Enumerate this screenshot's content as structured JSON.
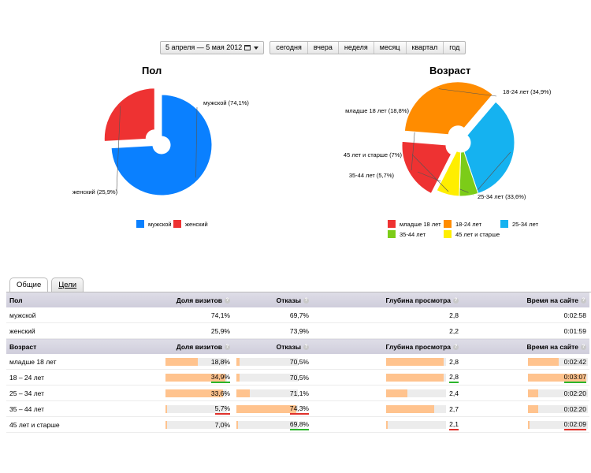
{
  "toolbar": {
    "date_range": "5 апреля — 5 мая 2012",
    "periods": [
      "сегодня",
      "вчера",
      "неделя",
      "месяц",
      "квартал",
      "год"
    ]
  },
  "chart_data": [
    {
      "type": "pie",
      "title": "Пол",
      "slices": [
        {
          "name": "мужской",
          "label": "мужской (74,1%)",
          "value": 74.1,
          "color": "#0a80ff"
        },
        {
          "name": "женский",
          "label": "женский (25,9%)",
          "value": 25.9,
          "color": "#ee3232"
        }
      ],
      "legend": [
        "мужской",
        "женский"
      ],
      "legend_placement": "bottom"
    },
    {
      "type": "pie",
      "title": "Возраст",
      "slices": [
        {
          "name": "младше 18 лет",
          "label": "младше 18 лет (18,8%)",
          "value": 18.8,
          "color": "#ee3232"
        },
        {
          "name": "18-24 лет",
          "label": "18-24 лет (34,9%)",
          "value": 34.9,
          "color": "#ff8c00"
        },
        {
          "name": "25-34 лет",
          "label": "25-34 лет (33,6%)",
          "value": 33.6,
          "color": "#15b2f0"
        },
        {
          "name": "35-44 лет",
          "label": "35-44 лет (5,7%)",
          "value": 5.7,
          "color": "#7ccc18"
        },
        {
          "name": "45 лет и старше",
          "label": "45 лет и старше (7%)",
          "value": 7.0,
          "color": "#ffee00"
        }
      ],
      "legend": [
        "младше 18 лет",
        "18-24 лет",
        "25-34 лет",
        "35-44 лет",
        "45 лет и старше"
      ],
      "legend_placement": "bottom"
    }
  ],
  "tabs": [
    "Общие",
    "Цели"
  ],
  "columns": [
    "Доля визитов",
    "Отказы",
    "Глубина просмотра",
    "Время на сайте"
  ],
  "gender_section": {
    "header": "Пол",
    "rows": [
      {
        "name": "мужской",
        "share": "74,1%",
        "bounce": "69,7%",
        "depth": "2,8",
        "time": "0:02:58"
      },
      {
        "name": "женский",
        "share": "25,9%",
        "bounce": "73,9%",
        "depth": "2,2",
        "time": "0:01:59"
      }
    ]
  },
  "age_section": {
    "header": "Возраст",
    "rows": [
      {
        "name": "младше 18 лет",
        "share": "18,8%",
        "share_level": 0.54,
        "share_mark": "",
        "bounce": "70,5%",
        "bounce_level": 0.05,
        "bounce_mark": "",
        "depth": "2,8",
        "depth_level": 0.98,
        "depth_mark": "",
        "time": "0:02:42",
        "time_level": 0.53,
        "time_mark": ""
      },
      {
        "name": "18 – 24 лет",
        "share": "34,9%",
        "share_level": 1.0,
        "share_mark": "green",
        "bounce": "70,5%",
        "bounce_level": 0.05,
        "bounce_mark": "",
        "depth": "2,8",
        "depth_level": 0.98,
        "depth_mark": "green",
        "time": "0:03:07",
        "time_level": 1.0,
        "time_mark": "green"
      },
      {
        "name": "25 – 34 лет",
        "share": "33,6%",
        "share_level": 0.96,
        "share_mark": "",
        "bounce": "71,1%",
        "bounce_level": 0.23,
        "bounce_mark": "",
        "depth": "2,4",
        "depth_level": 0.36,
        "depth_mark": "",
        "time": "0:02:20",
        "time_level": 0.18,
        "time_mark": ""
      },
      {
        "name": "35 – 44 лет",
        "share": "5,7%",
        "share_level": 0.03,
        "share_mark": "red",
        "bounce": "74,3%",
        "bounce_level": 1.0,
        "bounce_mark": "red",
        "depth": "2,7",
        "depth_level": 0.82,
        "depth_mark": "",
        "time": "0:02:20",
        "time_level": 0.18,
        "time_mark": ""
      },
      {
        "name": "45 лет и старше",
        "share": "7,0%",
        "share_level": 0.03,
        "share_mark": "",
        "bounce": "69,8%",
        "bounce_level": 0.02,
        "bounce_mark": "green",
        "depth": "2,1",
        "depth_level": 0.02,
        "depth_mark": "red",
        "time": "0:02:09",
        "time_level": 0.02,
        "time_mark": "red"
      }
    ]
  }
}
